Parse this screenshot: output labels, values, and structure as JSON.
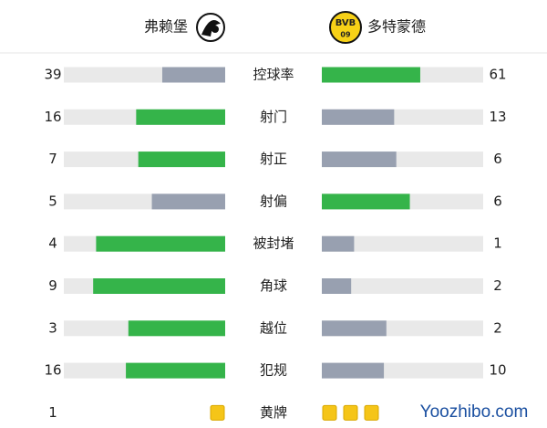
{
  "header": {
    "home_team": "弗赖堡",
    "away_team": "多特蒙德",
    "away_logo_top": "BVB",
    "away_logo_bottom": "09"
  },
  "stats": [
    {
      "label": "控球率",
      "home": 39,
      "away": 61
    },
    {
      "label": "射门",
      "home": 16,
      "away": 13
    },
    {
      "label": "射正",
      "home": 7,
      "away": 6
    },
    {
      "label": "射偏",
      "home": 5,
      "away": 6
    },
    {
      "label": "被封堵",
      "home": 4,
      "away": 1
    },
    {
      "label": "角球",
      "home": 9,
      "away": 2
    },
    {
      "label": "越位",
      "home": 3,
      "away": 2
    },
    {
      "label": "犯规",
      "home": 16,
      "away": 10
    }
  ],
  "yellow_cards": {
    "label": "黄牌",
    "home": 1,
    "away": 3
  },
  "watermark": "Yoozhibo.com"
}
